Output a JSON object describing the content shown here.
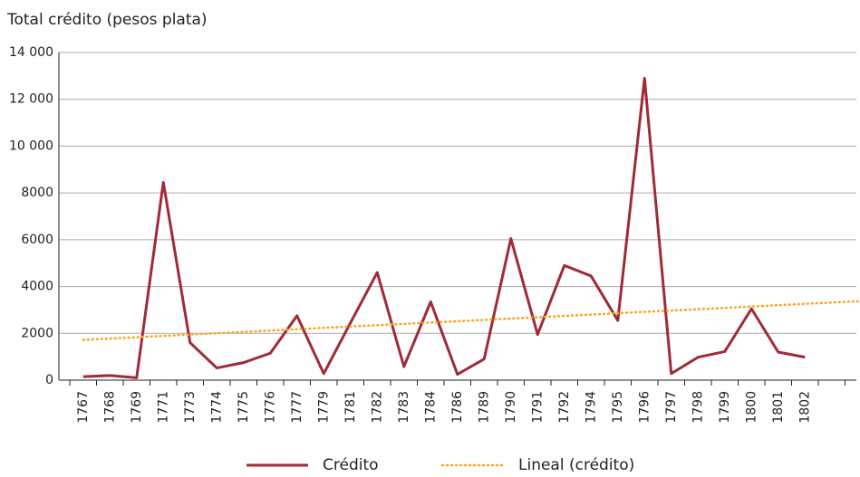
{
  "chart_data": {
    "type": "line",
    "title": "Total crédito (pesos plata)",
    "categories": [
      "1767",
      "1768",
      "1769",
      "1771",
      "1773",
      "1774",
      "1775",
      "1776",
      "1777",
      "1779",
      "1781",
      "1782",
      "1783",
      "1784",
      "1786",
      "1789",
      "1790",
      "1791",
      "1792",
      "1794",
      "1795",
      "1796",
      "1797",
      "1798",
      "1799",
      "1800",
      "1801",
      "1802",
      null,
      null
    ],
    "series": [
      {
        "name": "Crédito",
        "color": "#a12a35",
        "style": "solid",
        "values": [
          150,
          200,
          100,
          8450,
          1600,
          520,
          750,
          1150,
          2750,
          280,
          2450,
          4600,
          580,
          3350,
          250,
          900,
          6050,
          1950,
          4900,
          4450,
          2550,
          12900,
          280,
          980,
          1220,
          3050,
          1200,
          980,
          null,
          null
        ]
      },
      {
        "name": "Lineal (crédito)",
        "color": "#f5a623",
        "style": "dotted",
        "values": [
          1720,
          1777,
          1834,
          1891,
          1948,
          2005,
          2062,
          2119,
          2176,
          2233,
          2290,
          2347,
          2404,
          2461,
          2518,
          2575,
          2632,
          2689,
          2746,
          2803,
          2860,
          2917,
          2974,
          3031,
          3088,
          3145,
          3202,
          3259,
          3316,
          3373
        ]
      }
    ],
    "ylim": [
      0,
      14000
    ],
    "yticks": [
      0,
      2000,
      4000,
      6000,
      8000,
      {
        "value": 10000,
        "label": "10 000"
      },
      {
        "value": 12000,
        "label": "12 000"
      },
      {
        "value": 14000,
        "label": "14 000"
      }
    ],
    "grid": true,
    "legend": "bottom"
  }
}
